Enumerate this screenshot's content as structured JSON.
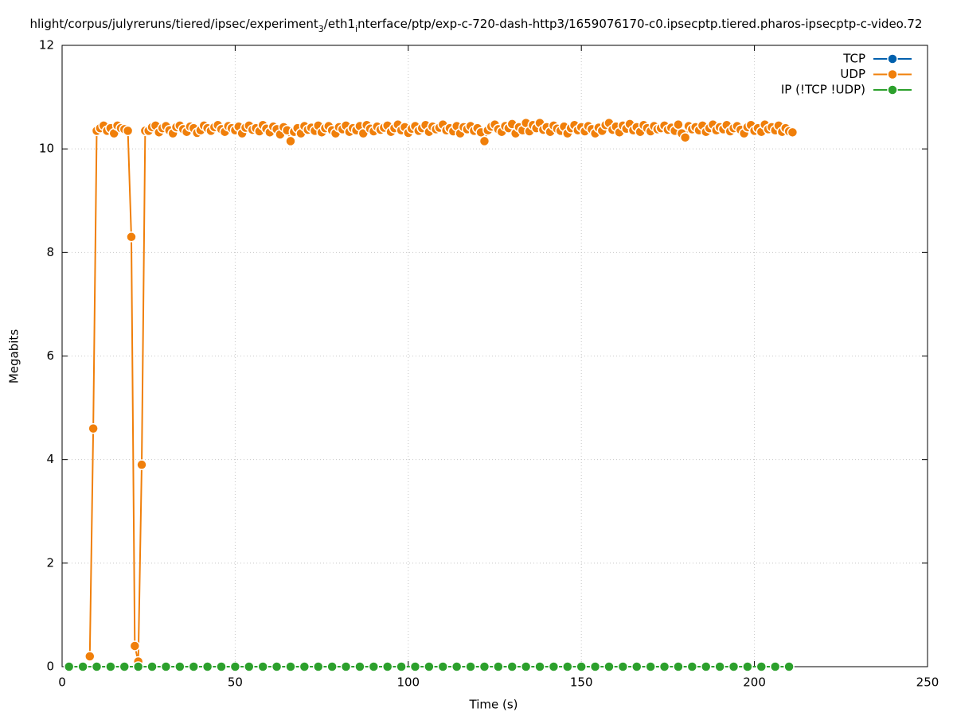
{
  "chart_data": {
    "type": "line",
    "title_parts": [
      {
        "text": "hlight/corpus/julyreruns/tiered/ipsec/experiment",
        "subscript": false
      },
      {
        "text": "3",
        "subscript": true
      },
      {
        "text": "/eth1",
        "subscript": false
      },
      {
        "text": "i",
        "subscript": true
      },
      {
        "text": "nterface/ptp/exp-c-720-dash-http3/1659076170-c0.ipsecptp.tiered.pharos-ipsecptp-c-video.72",
        "subscript": false
      }
    ],
    "x_label": "Time (s)",
    "y_label": "Megabits",
    "xlim": [
      0,
      250
    ],
    "xticks": [
      0,
      50,
      100,
      150,
      200,
      250
    ],
    "ylim": [
      0,
      12
    ],
    "yticks": [
      0,
      2,
      4,
      6,
      8,
      10,
      12
    ],
    "grid": true,
    "legend": "top-right",
    "series": [
      {
        "name": "TCP",
        "color": "#0060ad",
        "x": [],
        "values": []
      },
      {
        "name": "UDP",
        "color": "#f07f0a",
        "x": [
          8,
          9,
          10,
          11,
          12,
          13,
          14,
          15,
          16,
          17,
          18,
          19,
          20,
          21,
          22,
          23,
          24,
          25,
          26,
          27,
          28,
          29,
          30,
          31,
          32,
          33,
          34,
          35,
          36,
          37,
          38,
          39,
          40,
          41,
          42,
          43,
          44,
          45,
          46,
          47,
          48,
          49,
          50,
          51,
          52,
          53,
          54,
          55,
          56,
          57,
          58,
          59,
          60,
          61,
          62,
          63,
          64,
          65,
          66,
          67,
          68,
          69,
          70,
          71,
          72,
          73,
          74,
          75,
          76,
          77,
          78,
          79,
          80,
          81,
          82,
          83,
          84,
          85,
          86,
          87,
          88,
          89,
          90,
          91,
          92,
          93,
          94,
          95,
          96,
          97,
          98,
          99,
          100,
          101,
          102,
          103,
          104,
          105,
          106,
          107,
          108,
          109,
          110,
          111,
          112,
          113,
          114,
          115,
          116,
          117,
          118,
          119,
          120,
          121,
          122,
          123,
          124,
          125,
          126,
          127,
          128,
          129,
          130,
          131,
          132,
          133,
          134,
          135,
          136,
          137,
          138,
          139,
          140,
          141,
          142,
          143,
          144,
          145,
          146,
          147,
          148,
          149,
          150,
          151,
          152,
          153,
          154,
          155,
          156,
          157,
          158,
          159,
          160,
          161,
          162,
          163,
          164,
          165,
          166,
          167,
          168,
          169,
          170,
          171,
          172,
          173,
          174,
          175,
          176,
          177,
          178,
          179,
          180,
          181,
          182,
          183,
          184,
          185,
          186,
          187,
          188,
          189,
          190,
          191,
          192,
          193,
          194,
          195,
          196,
          197,
          198,
          199,
          200,
          201,
          202,
          203,
          204,
          205,
          206,
          207,
          208,
          209,
          210,
          211
        ],
        "values": [
          0.2,
          4.6,
          10.35,
          10.4,
          10.45,
          10.35,
          10.4,
          10.3,
          10.45,
          10.4,
          10.38,
          10.35,
          8.3,
          0.4,
          0.1,
          3.9,
          10.35,
          10.35,
          10.42,
          10.45,
          10.32,
          10.4,
          10.44,
          10.36,
          10.3,
          10.42,
          10.45,
          10.38,
          10.33,
          10.43,
          10.4,
          10.31,
          10.36,
          10.45,
          10.4,
          10.35,
          10.42,
          10.46,
          10.38,
          10.33,
          10.44,
          10.4,
          10.36,
          10.43,
          10.3,
          10.41,
          10.45,
          10.37,
          10.4,
          10.34,
          10.46,
          10.39,
          10.32,
          10.43,
          10.38,
          10.28,
          10.42,
          10.36,
          10.15,
          10.33,
          10.4,
          10.3,
          10.44,
          10.37,
          10.41,
          10.35,
          10.45,
          10.32,
          10.4,
          10.44,
          10.36,
          10.3,
          10.42,
          10.38,
          10.45,
          10.33,
          10.4,
          10.36,
          10.44,
          10.3,
          10.46,
          10.39,
          10.34,
          10.43,
          10.37,
          10.41,
          10.45,
          10.33,
          10.4,
          10.47,
          10.36,
          10.42,
          10.31,
          10.39,
          10.44,
          10.35,
          10.4,
          10.46,
          10.33,
          10.43,
          10.38,
          10.41,
          10.47,
          10.36,
          10.4,
          10.34,
          10.44,
          10.3,
          10.42,
          10.38,
          10.44,
          10.35,
          10.4,
          10.32,
          10.15,
          10.36,
          10.43,
          10.47,
          10.38,
          10.33,
          10.44,
          10.4,
          10.48,
          10.3,
          10.42,
          10.36,
          10.5,
          10.34,
          10.46,
          10.4,
          10.5,
          10.37,
          10.42,
          10.33,
          10.45,
          10.39,
          10.35,
          10.43,
          10.3,
          10.4,
          10.46,
          10.36,
          10.42,
          10.34,
          10.44,
          10.38,
          10.3,
          10.41,
          10.35,
          10.46,
          10.5,
          10.37,
          10.43,
          10.32,
          10.45,
          10.39,
          10.48,
          10.36,
          10.42,
          10.33,
          10.46,
          10.4,
          10.34,
          10.44,
          10.38,
          10.4,
          10.45,
          10.37,
          10.41,
          10.35,
          10.47,
          10.3,
          10.22,
          10.44,
          10.38,
          10.42,
          10.36,
          10.45,
          10.33,
          10.4,
          10.47,
          10.36,
          10.42,
          10.38,
          10.46,
          10.34,
          10.4,
          10.44,
          10.37,
          10.3,
          10.42,
          10.46,
          10.35,
          10.4,
          10.33,
          10.47,
          10.38,
          10.42,
          10.36,
          10.45,
          10.33,
          10.4,
          10.34,
          10.32
        ]
      },
      {
        "name": "IP (!TCP  !UDP)",
        "color": "#2ca02c",
        "x": [
          2,
          6,
          10,
          14,
          18,
          22,
          26,
          30,
          34,
          38,
          42,
          46,
          50,
          54,
          58,
          62,
          66,
          70,
          74,
          78,
          82,
          86,
          90,
          94,
          98,
          102,
          106,
          110,
          114,
          118,
          122,
          126,
          130,
          134,
          138,
          142,
          146,
          150,
          154,
          158,
          162,
          166,
          170,
          174,
          178,
          182,
          186,
          190,
          194,
          198,
          202,
          206,
          210
        ],
        "values": [
          0,
          0,
          0,
          0,
          0,
          0,
          0,
          0,
          0,
          0,
          0,
          0,
          0,
          0,
          0,
          0,
          0,
          0,
          0,
          0,
          0,
          0,
          0,
          0,
          0,
          0,
          0,
          0,
          0,
          0,
          0,
          0,
          0,
          0,
          0,
          0,
          0,
          0,
          0,
          0,
          0,
          0,
          0,
          0,
          0,
          0,
          0,
          0,
          0,
          0,
          0,
          0,
          0
        ]
      }
    ]
  }
}
